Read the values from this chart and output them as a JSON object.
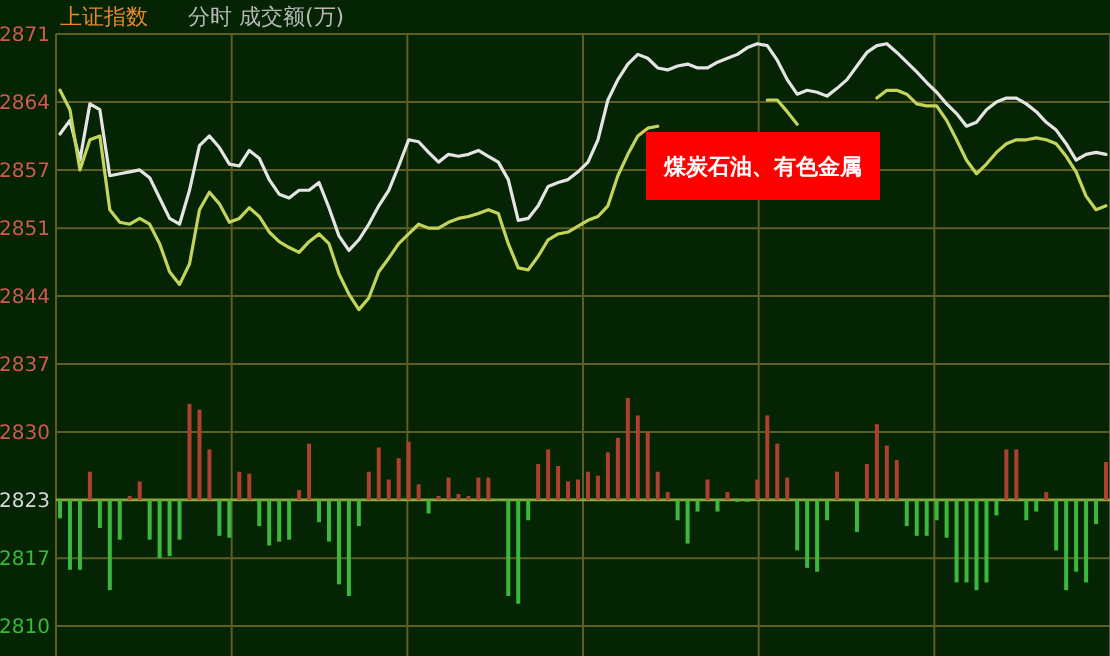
{
  "chart_data": {
    "type": "line",
    "title": "上证指数",
    "subtitle": "分时 成交额(万)",
    "categories": [
      null,
      null,
      null,
      null,
      null,
      null,
      null,
      null,
      null,
      null,
      null,
      null,
      null,
      null,
      null,
      null,
      null,
      null,
      null,
      null,
      null,
      null,
      null,
      null,
      null,
      null,
      null,
      null,
      null,
      null,
      null,
      null,
      null,
      null,
      null,
      null,
      null,
      null,
      null,
      null,
      null,
      null,
      null,
      null,
      null,
      null,
      null,
      null,
      null,
      null,
      null,
      null,
      null,
      null,
      null,
      null,
      null,
      null,
      null,
      null,
      null,
      null,
      null,
      null,
      null,
      null,
      null,
      null,
      null,
      null,
      null,
      null,
      null,
      null,
      null,
      null,
      null,
      null,
      null,
      null,
      null,
      null,
      null,
      null,
      null,
      null,
      null,
      null,
      null,
      null,
      null,
      null,
      null,
      null,
      null,
      null,
      null,
      null,
      null,
      null,
      null,
      null,
      null,
      null,
      null,
      null
    ],
    "series": [
      {
        "type": "bar",
        "base": [
          2823,
          2823,
          2823,
          2823,
          2823,
          2823,
          2823,
          2823,
          2823,
          2823,
          2823,
          2823,
          2823,
          2823,
          2823,
          2823,
          2823,
          2823,
          2823,
          2823,
          2823,
          2823,
          2823,
          2823,
          2823,
          2823,
          2823,
          2823,
          2823,
          2823,
          2823,
          2823,
          2823,
          2823,
          2823,
          2823,
          2823,
          2823,
          2823,
          2823,
          2823,
          2823,
          2823,
          2823,
          2823,
          2823,
          2823,
          2823,
          2823,
          2823,
          2823,
          2823,
          2823,
          2823,
          2823,
          2823,
          2823,
          2823,
          2823,
          2823,
          2823,
          2823,
          2823,
          2823,
          2823,
          2823,
          2823,
          2823,
          2823,
          2823,
          2823,
          2823,
          2823,
          2823,
          2823,
          2823,
          2823,
          2823,
          2823,
          2823,
          2823,
          2823,
          2823,
          2823,
          2823,
          2823,
          2823,
          2823,
          2823,
          2823,
          2823,
          2823,
          2823,
          2823,
          2823,
          2823,
          2823,
          2823,
          2823,
          2823,
          2823,
          2823,
          2823,
          2823,
          2823,
          2823
        ],
        "values": [
          -1.9,
          -7.2,
          -7.2,
          2.9,
          -2.9,
          -9.3,
          -4.1,
          0.4,
          1.9,
          -4.1,
          -6.0,
          -5.8,
          -4.1,
          9.9,
          9.3,
          5.2,
          -3.7,
          -3.9,
          2.9,
          2.7,
          -2.7,
          -4.7,
          -4.3,
          -4.1,
          1.0,
          5.8,
          -2.3,
          -4.3,
          -8.7,
          -9.9,
          -2.7,
          2.9,
          5.4,
          2.1,
          4.3,
          6.0,
          1.6,
          -1.4,
          0.4,
          2.3,
          0.6,
          0.4,
          2.3,
          2.3,
          0,
          -9.9,
          -10.7,
          -2.1,
          3.7,
          5.2,
          3.5,
          1.9,
          2.1,
          2.9,
          2.5,
          4.9,
          6.4,
          10.5,
          8.7,
          7.0,
          2.9,
          0.8,
          -2.1,
          -4.5,
          -1.2,
          2.1,
          -1.2,
          0.8,
          -0.2,
          -0.2,
          2.1,
          8.7,
          5.8,
          2.3,
          -5.2,
          -7.0,
          -7.4,
          -2.1,
          2.9,
          0,
          -3.3,
          3.7,
          7.8,
          5.6,
          4.1,
          -2.7,
          -3.7,
          -3.7,
          -2.1,
          -3.9,
          -8.5,
          -8.5,
          -9.3,
          -8.5,
          -1.6,
          5.2,
          5.2,
          -2.1,
          -1.2,
          0.8,
          -5.2,
          -9.3,
          -7.4,
          -8.5,
          -2.5,
          3.9
        ],
        "colors": [
          "#3cb83c",
          "#3cb83c",
          "#3cb83c",
          "#b0402e",
          "#3cb83c",
          "#3cb83c",
          "#3cb83c",
          "#b0402e",
          "#b0402e",
          "#3cb83c",
          "#3cb83c",
          "#3cb83c",
          "#3cb83c",
          "#b0402e",
          "#b0402e",
          "#b0402e",
          "#3cb83c",
          "#3cb83c",
          "#b0402e",
          "#b0402e",
          "#3cb83c",
          "#3cb83c",
          "#3cb83c",
          "#3cb83c",
          "#b0402e",
          "#b0402e",
          "#3cb83c",
          "#3cb83c",
          "#3cb83c",
          "#3cb83c",
          "#3cb83c",
          "#b0402e",
          "#b0402e",
          "#b0402e",
          "#b0402e",
          "#b0402e",
          "#b0402e",
          "#3cb83c",
          "#b0402e",
          "#b0402e",
          "#b0402e",
          "#b0402e",
          "#b0402e",
          "#b0402e",
          "#3cb83c",
          "#3cb83c",
          "#3cb83c",
          "#3cb83c",
          "#b0402e",
          "#b0402e",
          "#b0402e",
          "#b0402e",
          "#b0402e",
          "#b0402e",
          "#b0402e",
          "#b0402e",
          "#b0402e",
          "#b0402e",
          "#b0402e",
          "#b0402e",
          "#b0402e",
          "#b0402e",
          "#3cb83c",
          "#3cb83c",
          "#3cb83c",
          "#b0402e",
          "#3cb83c",
          "#b0402e",
          "#3cb83c",
          "#3cb83c",
          "#b0402e",
          "#b0402e",
          "#b0402e",
          "#b0402e",
          "#3cb83c",
          "#3cb83c",
          "#3cb83c",
          "#3cb83c",
          "#b0402e",
          "#3cb83c",
          "#3cb83c",
          "#b0402e",
          "#b0402e",
          "#b0402e",
          "#b0402e",
          "#3cb83c",
          "#3cb83c",
          "#3cb83c",
          "#3cb83c",
          "#3cb83c",
          "#3cb83c",
          "#3cb83c",
          "#3cb83c",
          "#3cb83c",
          "#3cb83c",
          "#b0402e",
          "#b0402e",
          "#3cb83c",
          "#3cb83c",
          "#b0402e",
          "#3cb83c",
          "#3cb83c",
          "#3cb83c",
          "#3cb83c",
          "#3cb83c",
          "#b0402e"
        ]
      },
      {
        "color": "#e4e4e4",
        "values": [
          2860.7,
          2862.1,
          2858.0,
          2863.8,
          2863.2,
          2856.4,
          2856.6,
          2856.8,
          2857.0,
          2856.2,
          2854.1,
          2852.0,
          2851.4,
          2854.9,
          2859.5,
          2860.5,
          2859.3,
          2857.6,
          2857.4,
          2859.0,
          2858.2,
          2856.0,
          2854.5,
          2854.1,
          2854.9,
          2854.9,
          2855.7,
          2853.1,
          2850.2,
          2848.7,
          2849.8,
          2851.4,
          2853.3,
          2854.9,
          2857.4,
          2860.1,
          2859.9,
          2858.8,
          2857.8,
          2858.6,
          2858.4,
          2858.6,
          2859.0,
          2858.4,
          2857.8,
          2856.0,
          2851.8,
          2852.0,
          2853.3,
          2855.3,
          2855.7,
          2856.0,
          2856.8,
          2857.8,
          2860.1,
          2864.2,
          2866.3,
          2867.9,
          2868.9,
          2868.5,
          2867.5,
          2867.3,
          2867.7,
          2867.9,
          2867.5,
          2867.5,
          2868.1,
          2868.5,
          2868.9,
          2869.6,
          2870.0,
          2869.8,
          2868.3,
          2866.3,
          2864.8,
          2865.2,
          2865.0,
          2864.6,
          2865.4,
          2866.3,
          2867.7,
          2869.1,
          2869.8,
          2870.0,
          2869.1,
          2868.1,
          2867.1,
          2866.0,
          2865.0,
          2863.8,
          2862.8,
          2861.5,
          2861.9,
          2863.2,
          2864.0,
          2864.4,
          2864.4,
          2863.8,
          2863.0,
          2861.9,
          2861.1,
          2859.7,
          2858.0,
          2858.6,
          2858.8,
          2858.6
        ]
      },
      {
        "color": "#c4d45a",
        "values": [
          2865.2,
          2863.2,
          2857.0,
          2860.1,
          2860.5,
          2852.9,
          2851.6,
          2851.4,
          2852.0,
          2851.4,
          2849.4,
          2846.5,
          2845.2,
          2847.3,
          2852.9,
          2854.7,
          2853.5,
          2851.6,
          2852.0,
          2853.1,
          2852.2,
          2850.6,
          2849.6,
          2849.0,
          2848.5,
          2849.6,
          2850.4,
          2849.4,
          2846.3,
          2844.2,
          2842.6,
          2843.8,
          2846.5,
          2847.9,
          2849.4,
          2850.4,
          2851.4,
          2851.0,
          2851.0,
          2851.6,
          2852.0,
          2852.2,
          2852.5,
          2852.9,
          2852.5,
          2849.4,
          2846.9,
          2846.7,
          2848.1,
          2849.8,
          2850.4,
          2850.6,
          2851.2,
          2851.8,
          2852.2,
          2853.3,
          2856.4,
          2858.6,
          2860.5,
          2861.3,
          2861.5,
          null,
          null,
          null,
          null,
          null,
          null,
          null,
          null,
          null,
          null,
          2864.2,
          2864.2,
          2863.0,
          2861.7,
          null,
          null,
          null,
          null,
          null,
          null,
          null,
          2864.4,
          2865.2,
          2865.2,
          2864.8,
          2863.8,
          2863.6,
          2863.6,
          2862.1,
          2860.1,
          2858.0,
          2856.6,
          2857.6,
          2858.8,
          2859.7,
          2860.1,
          2860.1,
          2860.3,
          2860.1,
          2859.7,
          2858.4,
          2856.8,
          2854.3,
          2852.9,
          2853.3
        ]
      }
    ],
    "ylim": [
      2807,
      2871
    ],
    "yticks": [
      2810,
      2817,
      2823,
      2830,
      2837,
      2844,
      2851,
      2857,
      2864,
      2871
    ],
    "ref_lines": [
      {
        "axis": "y",
        "value": 2823,
        "color": "#8ca83c"
      }
    ],
    "annotations": [
      "煤炭石油、有色金属"
    ],
    "grid": true,
    "tick_labels": "y",
    "marker": "none",
    "line_style": "solid"
  }
}
